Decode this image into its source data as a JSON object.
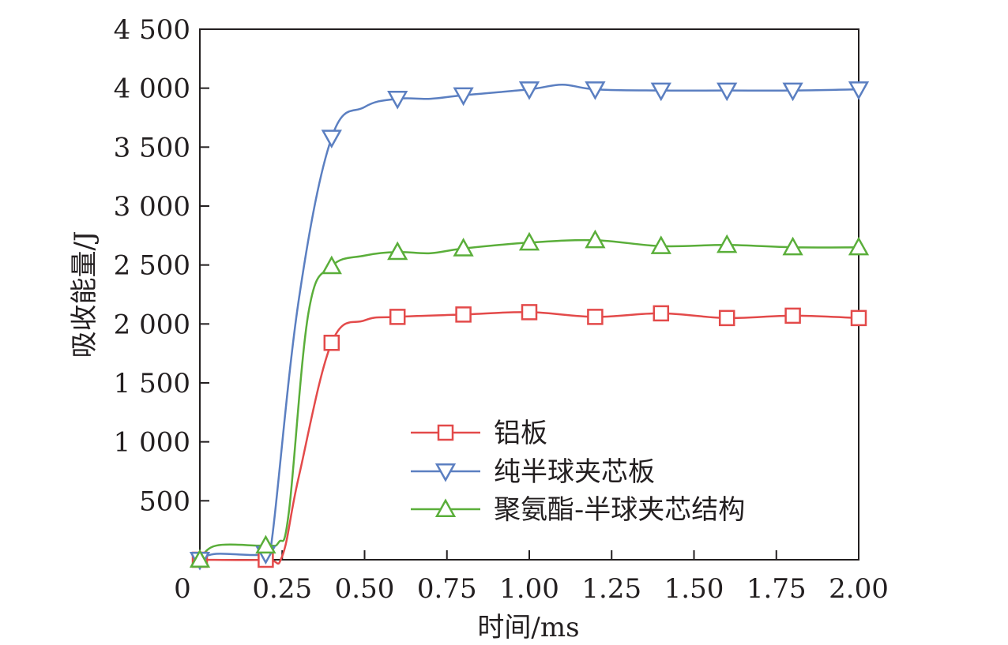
{
  "chart_data": {
    "type": "line",
    "xlabel": "时间/ms",
    "ylabel": "吸收能量/J",
    "xlim": [
      0,
      2.0
    ],
    "ylim": [
      0,
      4500
    ],
    "x_ticks": [
      0,
      0.25,
      0.5,
      0.75,
      1.0,
      1.25,
      1.5,
      1.75,
      2.0
    ],
    "x_tick_labels": [
      "0",
      "0.25",
      "0.50",
      "0.75",
      "1.00",
      "1.25",
      "1.50",
      "1.75",
      "2.00"
    ],
    "y_ticks": [
      500,
      1000,
      1500,
      2000,
      2500,
      3000,
      3500,
      4000,
      4500
    ],
    "y_tick_labels": [
      "500",
      "1 000",
      "1 500",
      "2 000",
      "2 500",
      "3 000",
      "3 500",
      "4 000",
      "4 500"
    ],
    "grid": false,
    "legend_position": "bottom-right",
    "series": [
      {
        "name": "铝板",
        "color": "#e34a4a",
        "marker": "square",
        "x": [
          0.0,
          0.2,
          0.25,
          0.3,
          0.4,
          0.5,
          0.6,
          0.8,
          1.0,
          1.2,
          1.4,
          1.6,
          1.8,
          2.0
        ],
        "y": [
          0,
          0,
          30,
          700,
          1840,
          2030,
          2060,
          2080,
          2100,
          2060,
          2090,
          2050,
          2070,
          2050
        ]
      },
      {
        "name": "纯半球夹芯板",
        "color": "#5b7fc1",
        "marker": "triangle-down",
        "x": [
          0.0,
          0.05,
          0.2,
          0.22,
          0.3,
          0.4,
          0.5,
          0.6,
          0.7,
          0.8,
          1.0,
          1.1,
          1.2,
          1.4,
          1.6,
          1.8,
          2.0
        ],
        "y": [
          0,
          50,
          50,
          200,
          2200,
          3580,
          3840,
          3910,
          3910,
          3940,
          3990,
          4030,
          3990,
          3980,
          3980,
          3980,
          3990
        ]
      },
      {
        "name": "聚氨酯-半球夹芯结构",
        "color": "#5aae3a",
        "marker": "triangle-up",
        "x": [
          0.0,
          0.05,
          0.2,
          0.24,
          0.27,
          0.33,
          0.4,
          0.5,
          0.6,
          0.7,
          0.8,
          1.0,
          1.2,
          1.4,
          1.6,
          1.8,
          2.0
        ],
        "y": [
          0,
          120,
          120,
          150,
          400,
          2100,
          2490,
          2580,
          2610,
          2600,
          2640,
          2690,
          2710,
          2660,
          2670,
          2650,
          2650
        ]
      }
    ]
  }
}
